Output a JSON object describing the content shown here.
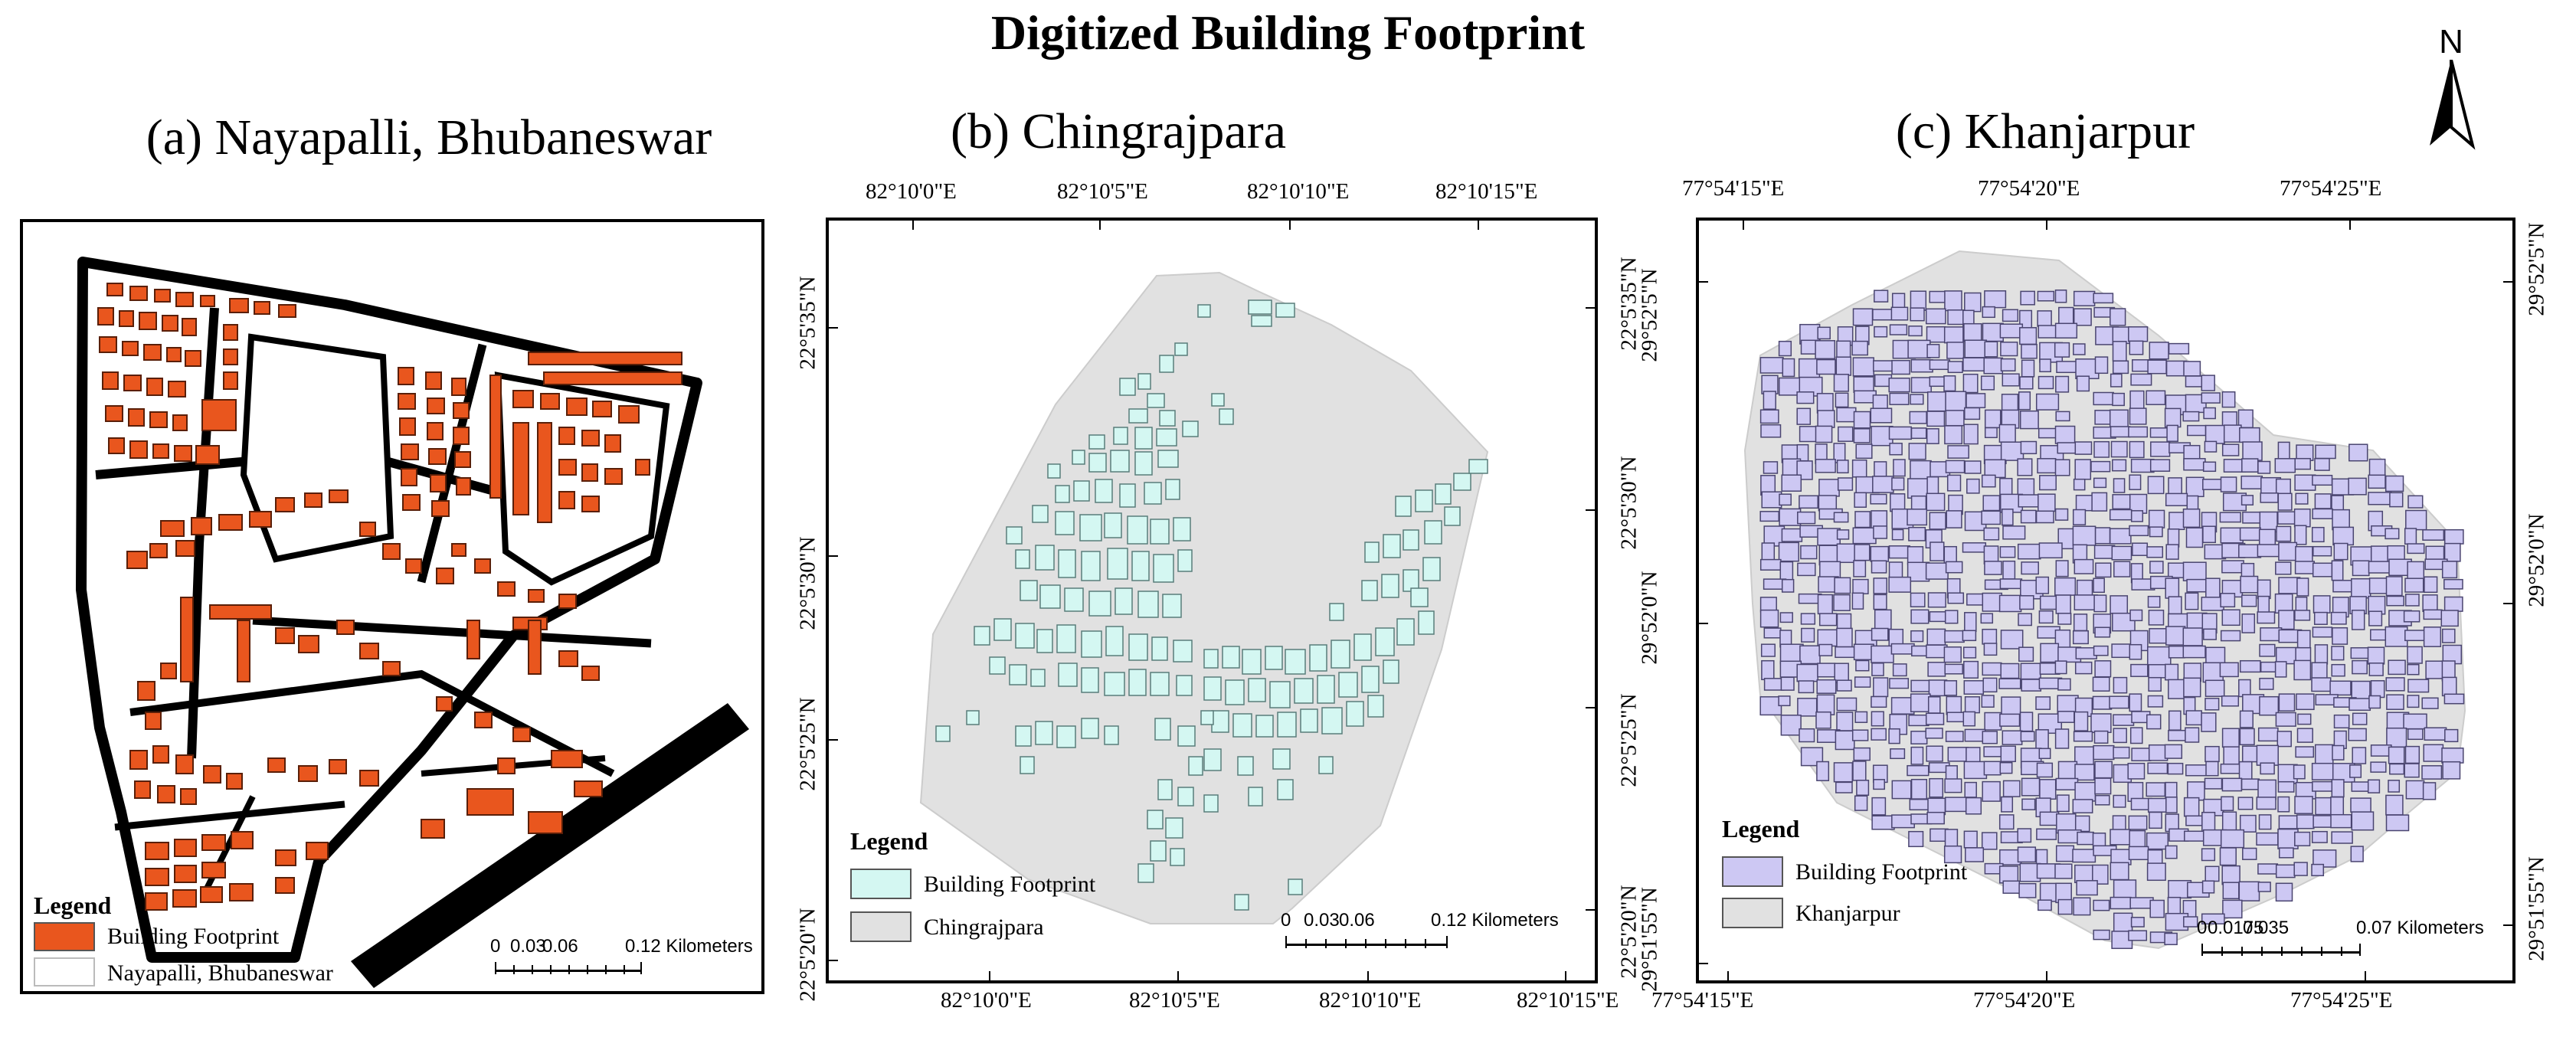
{
  "title": "Digitized Building Footprint",
  "north_arrow": {
    "label": "N",
    "icon": "north-arrow-icon"
  },
  "panels": [
    {
      "title": "(a) Nayapalli, Bhubaneswar",
      "legend": {
        "title": "Legend",
        "items": [
          {
            "label": "Building Footprint",
            "color": "#e9561e"
          },
          {
            "label": "Nayapalli, Bhubaneswar",
            "color": "#ffffff"
          }
        ]
      },
      "scale_bar": {
        "labels": [
          "0",
          "0.03",
          "0.06",
          "0.12 Kilometers"
        ]
      }
    },
    {
      "title": "(b) Chingrajpara",
      "top_lon_labels": [
        "82°10'0\"E",
        "82°10'5\"E",
        "82°10'10\"E",
        "82°10'15\"E"
      ],
      "bottom_lon_labels": [
        "82°10'0\"E",
        "82°10'5\"E",
        "82°10'10\"E",
        "82°10'15\"E"
      ],
      "left_lat_labels": [
        "22°5'35\"N",
        "22°5'30\"N",
        "22°5'25\"N",
        "22°5'20\"N"
      ],
      "right_lat_labels": [
        "22°5'35\"N",
        "22°5'30\"N",
        "22°5'25\"N",
        "22°5'20\"N"
      ],
      "legend": {
        "title": "Legend",
        "items": [
          {
            "label": "Building Footprint",
            "color": "#d4f7f2"
          },
          {
            "label": "Chingrajpara",
            "color": "#e1e1e1"
          }
        ]
      },
      "scale_bar": {
        "labels": [
          "0",
          "0.03",
          "0.06",
          "0.12 Kilometers"
        ]
      }
    },
    {
      "title": "(c) Khanjarpur",
      "top_lon_labels": [
        "77°54'15\"E",
        "77°54'20\"E",
        "77°54'25\"E"
      ],
      "bottom_lon_labels": [
        "77°54'15\"E",
        "77°54'20\"E",
        "77°54'25\"E"
      ],
      "left_lat_labels": [
        "29°52'5\"N",
        "29°52'0\"N",
        "29°51'55\"N"
      ],
      "right_lat_labels": [
        "29°52'5\"N",
        "29°52'0\"N",
        "29°51'55\"N"
      ],
      "legend": {
        "title": "Legend",
        "items": [
          {
            "label": "Building Footprint",
            "color": "#cdc8f3"
          },
          {
            "label": "Khanjarpur",
            "color": "#e1e1e1"
          }
        ]
      },
      "scale_bar": {
        "labels": [
          "0",
          "0.0175",
          "0.035",
          "0.07 Kilometers"
        ]
      }
    }
  ]
}
